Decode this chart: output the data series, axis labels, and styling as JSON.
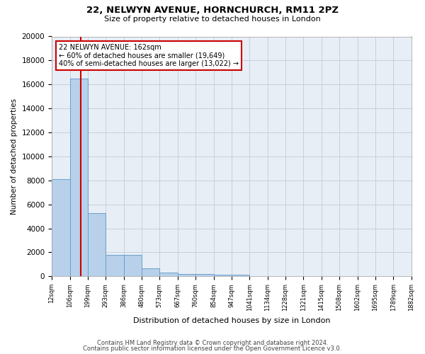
{
  "title": "22, NELWYN AVENUE, HORNCHURCH, RM11 2PZ",
  "subtitle": "Size of property relative to detached houses in London",
  "xlabel": "Distribution of detached houses by size in London",
  "ylabel": "Number of detached properties",
  "bar_color": "#b8d0ea",
  "bar_edge_color": "#6aa0cc",
  "bg_color": "#e8eef6",
  "grid_color": "#c8d0dc",
  "red_line_color": "#cc0000",
  "annotation_title": "22 NELWYN AVENUE: 162sqm",
  "annotation_line1": "← 60% of detached houses are smaller (19,649)",
  "annotation_line2": "40% of semi-detached houses are larger (13,022) →",
  "annotation_box_color": "#ffffff",
  "annotation_box_edge": "#cc0000",
  "footer_line1": "Contains HM Land Registry data © Crown copyright and database right 2024.",
  "footer_line2": "Contains public sector information licensed under the Open Government Licence v3.0.",
  "tick_labels": [
    "12sqm",
    "106sqm",
    "199sqm",
    "293sqm",
    "386sqm",
    "480sqm",
    "573sqm",
    "667sqm",
    "760sqm",
    "854sqm",
    "947sqm",
    "1041sqm",
    "1134sqm",
    "1228sqm",
    "1321sqm",
    "1415sqm",
    "1508sqm",
    "1602sqm",
    "1695sqm",
    "1789sqm",
    "1882sqm"
  ],
  "bin_edges": [
    12,
    106,
    199,
    293,
    386,
    480,
    573,
    667,
    760,
    854,
    947,
    1041,
    1134,
    1228,
    1321,
    1415,
    1508,
    1602,
    1695,
    1789,
    1882
  ],
  "bar_heights": [
    8100,
    16500,
    5300,
    1780,
    1780,
    680,
    310,
    220,
    175,
    155,
    130,
    0,
    0,
    0,
    0,
    0,
    0,
    0,
    0,
    0
  ],
  "red_line_x": 162,
  "ylim": [
    0,
    20000
  ],
  "yticks": [
    0,
    2000,
    4000,
    6000,
    8000,
    10000,
    12000,
    14000,
    16000,
    18000,
    20000
  ],
  "fig_width": 6.0,
  "fig_height": 5.0,
  "dpi": 100
}
